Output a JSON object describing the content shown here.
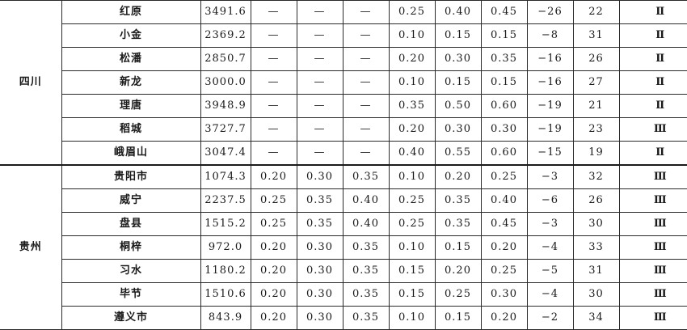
{
  "table": {
    "groups": [
      {
        "province": "四川",
        "rows": [
          {
            "city": "红原",
            "altitude": "3491.6",
            "s10": "—",
            "s50": "—",
            "s100": "—",
            "w10": "0.25",
            "w50": "0.40",
            "w100": "0.45",
            "tmin": "−26",
            "tmax": "22",
            "zone": "Ⅱ"
          },
          {
            "city": "小金",
            "altitude": "2369.2",
            "s10": "—",
            "s50": "—",
            "s100": "—",
            "w10": "0.10",
            "w50": "0.15",
            "w100": "0.15",
            "tmin": "−8",
            "tmax": "31",
            "zone": "Ⅱ"
          },
          {
            "city": "松潘",
            "altitude": "2850.7",
            "s10": "—",
            "s50": "—",
            "s100": "—",
            "w10": "0.20",
            "w50": "0.30",
            "w100": "0.35",
            "tmin": "−16",
            "tmax": "26",
            "zone": "Ⅱ"
          },
          {
            "city": "新龙",
            "altitude": "3000.0",
            "s10": "—",
            "s50": "—",
            "s100": "—",
            "w10": "0.10",
            "w50": "0.15",
            "w100": "0.15",
            "tmin": "−16",
            "tmax": "27",
            "zone": "Ⅱ"
          },
          {
            "city": "理唐",
            "altitude": "3948.9",
            "s10": "—",
            "s50": "—",
            "s100": "—",
            "w10": "0.35",
            "w50": "0.50",
            "w100": "0.60",
            "tmin": "−19",
            "tmax": "21",
            "zone": "Ⅱ"
          },
          {
            "city": "稻城",
            "altitude": "3727.7",
            "s10": "—",
            "s50": "—",
            "s100": "—",
            "w10": "0.20",
            "w50": "0.30",
            "w100": "0.30",
            "tmin": "−19",
            "tmax": "23",
            "zone": "Ⅲ"
          },
          {
            "city": "峨眉山",
            "altitude": "3047.4",
            "s10": "—",
            "s50": "—",
            "s100": "—",
            "w10": "0.40",
            "w50": "0.55",
            "w100": "0.60",
            "tmin": "−15",
            "tmax": "19",
            "zone": "Ⅱ"
          }
        ]
      },
      {
        "province": "贵州",
        "rows": [
          {
            "city": "贵阳市",
            "altitude": "1074.3",
            "s10": "0.20",
            "s50": "0.30",
            "s100": "0.35",
            "w10": "0.10",
            "w50": "0.20",
            "w100": "0.25",
            "tmin": "−3",
            "tmax": "32",
            "zone": "Ⅲ"
          },
          {
            "city": "威宁",
            "altitude": "2237.5",
            "s10": "0.25",
            "s50": "0.35",
            "s100": "0.40",
            "w10": "0.25",
            "w50": "0.35",
            "w100": "0.40",
            "tmin": "−6",
            "tmax": "26",
            "zone": "Ⅲ"
          },
          {
            "city": "盘县",
            "altitude": "1515.2",
            "s10": "0.25",
            "s50": "0.35",
            "s100": "0.40",
            "w10": "0.25",
            "w50": "0.35",
            "w100": "0.45",
            "tmin": "−3",
            "tmax": "30",
            "zone": "Ⅲ"
          },
          {
            "city": "桐梓",
            "altitude": "972.0",
            "s10": "0.20",
            "s50": "0.30",
            "s100": "0.35",
            "w10": "0.10",
            "w50": "0.15",
            "w100": "0.20",
            "tmin": "−4",
            "tmax": "33",
            "zone": "Ⅲ"
          },
          {
            "city": "习水",
            "altitude": "1180.2",
            "s10": "0.20",
            "s50": "0.30",
            "s100": "0.35",
            "w10": "0.15",
            "w50": "0.20",
            "w100": "0.25",
            "tmin": "−5",
            "tmax": "31",
            "zone": "Ⅲ"
          },
          {
            "city": "毕节",
            "altitude": "1510.6",
            "s10": "0.20",
            "s50": "0.30",
            "s100": "0.35",
            "w10": "0.15",
            "w50": "0.25",
            "w100": "0.30",
            "tmin": "−4",
            "tmax": "30",
            "zone": "Ⅲ"
          },
          {
            "city": "遵义市",
            "altitude": "843.9",
            "s10": "0.20",
            "s50": "0.30",
            "s100": "0.35",
            "w10": "0.10",
            "w50": "0.15",
            "w100": "0.20",
            "tmin": "−2",
            "tmax": "34",
            "zone": "Ⅲ"
          }
        ]
      }
    ]
  }
}
